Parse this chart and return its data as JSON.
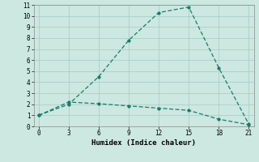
{
  "title": "",
  "xlabel": "Humidex (Indice chaleur)",
  "bg_color": "#cce8e0",
  "line_color": "#1a7a6a",
  "line1_x": [
    0,
    3,
    6,
    9,
    12,
    15,
    18,
    21
  ],
  "line1_y": [
    1,
    2,
    4.5,
    7.8,
    10.3,
    10.8,
    5.3,
    0.2
  ],
  "line2_x": [
    0,
    3,
    6,
    9,
    12,
    15,
    18,
    21
  ],
  "line2_y": [
    1,
    2.2,
    2.05,
    1.85,
    1.65,
    1.45,
    0.65,
    0.15
  ],
  "xlim": [
    -0.5,
    21.5
  ],
  "ylim": [
    0,
    11
  ],
  "xticks": [
    0,
    3,
    6,
    9,
    12,
    15,
    18,
    21
  ],
  "yticks": [
    0,
    1,
    2,
    3,
    4,
    5,
    6,
    7,
    8,
    9,
    10,
    11
  ],
  "grid_color": "#aacfc8",
  "font_family": "monospace",
  "tick_fontsize": 5.5,
  "xlabel_fontsize": 6.5
}
